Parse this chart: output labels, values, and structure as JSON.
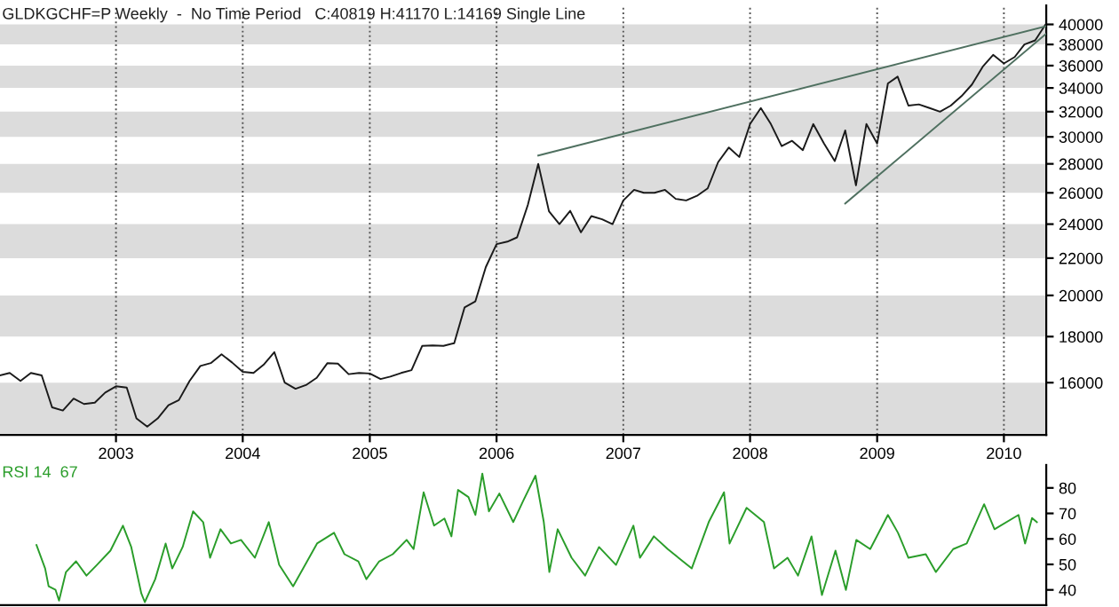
{
  "chart_data": [
    {
      "type": "line",
      "title": "GLDKGCHF=P Weekly  -  No Time Period   C:40819 H:41170 L:14169 Single Line",
      "x": [
        "2002-02",
        "2002-03",
        "2002-04",
        "2002-05",
        "2002-06",
        "2002-07",
        "2002-08",
        "2002-09",
        "2002-10",
        "2002-11",
        "2002-12",
        "2003-01",
        "2003-02",
        "2003-03",
        "2003-04",
        "2003-05",
        "2003-06",
        "2003-07",
        "2003-08",
        "2003-09",
        "2003-10",
        "2003-11",
        "2003-12",
        "2004-01",
        "2004-02",
        "2004-03",
        "2004-04",
        "2004-05",
        "2004-06",
        "2004-07",
        "2004-08",
        "2004-09",
        "2004-10",
        "2004-11",
        "2004-12",
        "2005-01",
        "2005-02",
        "2005-03",
        "2005-04",
        "2005-05",
        "2005-06",
        "2005-07",
        "2005-08",
        "2005-09",
        "2005-10",
        "2005-11",
        "2005-12",
        "2006-01",
        "2006-02",
        "2006-03",
        "2006-04",
        "2006-05",
        "2006-06",
        "2006-07",
        "2006-08",
        "2006-09",
        "2006-10",
        "2006-11",
        "2006-12",
        "2007-01",
        "2007-02",
        "2007-03",
        "2007-04",
        "2007-05",
        "2007-06",
        "2007-07",
        "2007-08",
        "2007-09",
        "2007-10",
        "2007-11",
        "2007-12",
        "2008-01",
        "2008-02",
        "2008-03",
        "2008-04",
        "2008-05",
        "2008-06",
        "2008-07",
        "2008-08",
        "2008-09",
        "2008-10",
        "2008-11",
        "2008-12",
        "2009-01",
        "2009-02",
        "2009-03",
        "2009-04",
        "2009-05",
        "2009-06",
        "2009-07",
        "2009-08",
        "2009-09",
        "2009-10",
        "2009-11",
        "2009-12",
        "2010-01",
        "2010-02",
        "2010-03",
        "2010-04",
        "2010-05"
      ],
      "series": [
        {
          "color": "#1a1a1a",
          "values": [
            16300,
            16400,
            16070,
            16400,
            16300,
            15020,
            14900,
            15360,
            15150,
            15200,
            15600,
            15850,
            15800,
            14600,
            14300,
            14600,
            15100,
            15300,
            16070,
            16700,
            16820,
            17200,
            16850,
            16450,
            16400,
            16750,
            17300,
            16000,
            15750,
            15900,
            16200,
            16820,
            16800,
            16350,
            16400,
            16380,
            16150,
            16250,
            16400,
            16520,
            17580,
            17600,
            17580,
            17700,
            19400,
            19700,
            21500,
            22800,
            22950,
            23200,
            25200,
            28000,
            24800,
            24000,
            24830,
            23500,
            24500,
            24300,
            24000,
            25500,
            26200,
            26000,
            26000,
            26200,
            25600,
            25500,
            25800,
            26300,
            28120,
            29200,
            28500,
            31000,
            32300,
            31000,
            29300,
            29700,
            29000,
            31000,
            29500,
            28200,
            30500,
            26500,
            31000,
            29500,
            34400,
            35000,
            32500,
            32600,
            32300,
            32000,
            32500,
            33300,
            34300,
            35900,
            37000,
            36200,
            36800,
            38000,
            38400,
            40000
          ]
        },
        {
          "type": "line",
          "color": "#4f7060",
          "x": [
            "2006-05",
            "2010-05"
          ],
          "values": [
            28600,
            39800
          ]
        },
        {
          "type": "line",
          "color": "#4f7060",
          "x": [
            "2008-10",
            "2010-05"
          ],
          "values": [
            25300,
            39000
          ]
        }
      ],
      "log": "y",
      "ylim": [
        14000,
        42000
      ],
      "yticks": [
        16000,
        18000,
        20000,
        22000,
        24000,
        26000,
        28000,
        30000,
        32000,
        34000,
        36000,
        38000,
        40000
      ],
      "xticks": [
        {
          "value": "2003-01-01",
          "label": "2003"
        },
        {
          "value": "2004-01-01",
          "label": "2004"
        },
        {
          "value": "2005-01-01",
          "label": "2005"
        },
        {
          "value": "2006-01-01",
          "label": "2006"
        },
        {
          "value": "2007-01-01",
          "label": "2007"
        },
        {
          "value": "2008-01-01",
          "label": "2008"
        },
        {
          "value": "2009-01-01",
          "label": "2009"
        },
        {
          "value": "2010-01-01",
          "label": "2010"
        }
      ],
      "bands": [
        {
          "axis": "y",
          "from": 14000,
          "to": 16000,
          "color": "#dcdcdc"
        },
        {
          "axis": "y",
          "from": 18000,
          "to": 20000,
          "color": "#dcdcdc"
        },
        {
          "axis": "y",
          "from": 22000,
          "to": 24000,
          "color": "#dcdcdc"
        },
        {
          "axis": "y",
          "from": 26000,
          "to": 28000,
          "color": "#dcdcdc"
        },
        {
          "axis": "y",
          "from": 30000,
          "to": 32000,
          "color": "#dcdcdc"
        },
        {
          "axis": "y",
          "from": 34000,
          "to": 36000,
          "color": "#dcdcdc"
        },
        {
          "axis": "y",
          "from": 38000,
          "to": 40000,
          "color": "#dcdcdc"
        }
      ],
      "xlim": [
        "2002-02-01",
        "2010-05-03"
      ],
      "grid": "x",
      "marker": "none",
      "line_style": "solid"
    },
    {
      "type": "line",
      "title": "RSI 14  67",
      "series": [
        {
          "color": "#2a9d2a",
          "x": [
            "2002-05-17",
            "2002-06-11",
            "2002-06-21",
            "2002-07-11",
            "2002-07-21",
            "2002-08-10",
            "2002-09-08",
            "2002-10-08",
            "2002-11-07",
            "2002-12-16",
            "2003-01-21",
            "2003-02-14",
            "2003-03-15",
            "2003-03-25",
            "2003-04-24",
            "2003-05-24",
            "2003-06-12",
            "2003-07-12",
            "2003-08-11",
            "2003-09-09",
            "2003-09-29",
            "2003-10-29",
            "2003-11-28",
            "2003-12-27",
            "2004-02-05",
            "2004-03-16",
            "2004-04-15",
            "2004-05-25",
            "2004-06-23",
            "2004-08-02",
            "2004-09-20",
            "2004-10-20",
            "2004-11-29",
            "2004-12-22",
            "2005-01-28",
            "2005-03-08",
            "2005-04-17",
            "2005-05-07",
            "2005-06-05",
            "2005-07-05",
            "2005-08-04",
            "2005-08-24",
            "2005-09-12",
            "2005-10-12",
            "2005-11-01",
            "2005-11-21",
            "2005-12-10",
            "2006-01-09",
            "2006-02-18",
            "2006-03-19",
            "2006-04-23",
            "2006-05-17",
            "2006-06-02",
            "2006-06-26",
            "2006-08-05",
            "2006-09-13",
            "2006-10-23",
            "2006-12-11",
            "2007-01-30",
            "2007-02-18",
            "2007-03-30",
            "2007-05-09",
            "2007-07-17",
            "2007-09-04",
            "2007-10-18",
            "2007-11-03",
            "2007-12-22",
            "2008-02-10",
            "2008-03-10",
            "2008-04-18",
            "2008-05-18",
            "2008-06-26",
            "2008-07-26",
            "2008-09-03",
            "2008-10-03",
            "2008-11-02",
            "2008-12-12",
            "2009-02-01",
            "2009-03-02",
            "2009-04-01",
            "2009-05-21",
            "2009-06-19",
            "2009-08-08",
            "2009-09-16",
            "2009-11-05",
            "2009-12-05",
            "2010-02-12",
            "2010-03-03",
            "2010-03-23",
            "2010-04-06"
          ],
          "values": [
            57.6,
            48.4,
            41.4,
            40,
            35.8,
            47,
            51.2,
            45.6,
            49.8,
            55.4,
            65.2,
            56.8,
            38.6,
            35.2,
            44.2,
            58.2,
            48.4,
            56.8,
            70.8,
            66.6,
            52.6,
            63.8,
            58.2,
            59.6,
            52.6,
            66.6,
            49.8,
            41.4,
            48.4,
            58.2,
            62.4,
            54,
            51.2,
            44.2,
            51.2,
            54,
            59.6,
            56,
            78.3,
            65.2,
            68,
            61,
            79.2,
            76.4,
            69.4,
            85.6,
            70.8,
            77.8,
            66.6,
            75,
            84.8,
            66.6,
            47,
            63.8,
            52.6,
            45.6,
            56.8,
            49.8,
            65.2,
            52.6,
            61,
            56,
            48.4,
            66.6,
            78.3,
            58.2,
            72.2,
            66.6,
            48.4,
            52.6,
            45.6,
            61,
            38,
            55.4,
            40,
            59.6,
            56,
            69.4,
            62.4,
            52.6,
            54,
            47,
            56,
            58.2,
            73.6,
            63.8,
            69.4,
            58.2,
            68.2,
            66.6
          ]
        }
      ],
      "ylim": [
        34,
        89
      ],
      "yticks": [
        40,
        50,
        60,
        70,
        80
      ],
      "xlim": [
        "2002-02-01",
        "2010-05-03"
      ],
      "tick_labels": "y",
      "marker": "none",
      "line_style": "solid"
    }
  ]
}
